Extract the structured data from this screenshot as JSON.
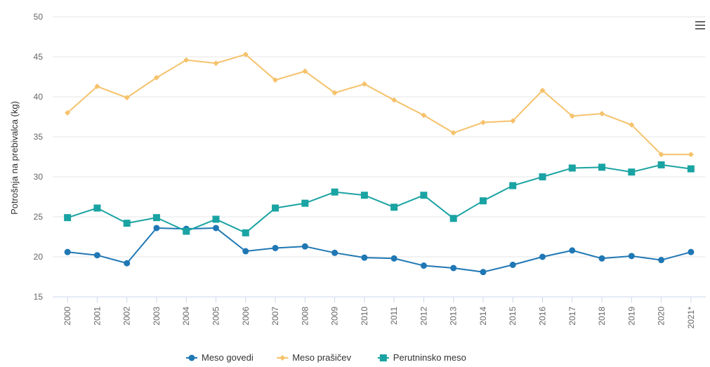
{
  "chart_data": {
    "type": "line",
    "title": "",
    "xlabel": "",
    "ylabel": "Potrošnja na prebivalca (kg)",
    "ylim": [
      15,
      50
    ],
    "yticks": [
      15,
      20,
      25,
      30,
      35,
      40,
      45,
      50
    ],
    "categories": [
      "2000",
      "2001",
      "2002",
      "2003",
      "2004",
      "2005",
      "2006",
      "2007",
      "2008",
      "2009",
      "2010",
      "2011",
      "2012",
      "2013",
      "2014",
      "2015",
      "2016",
      "2017",
      "2018",
      "2019",
      "2020",
      "2021*"
    ],
    "grid": true,
    "legend": "bottom-center",
    "series": [
      {
        "name": "Meso govedi",
        "color": "#1f77b4",
        "marker": "circle",
        "values": [
          20.6,
          20.2,
          19.2,
          23.6,
          23.5,
          23.6,
          20.7,
          21.1,
          21.3,
          20.5,
          19.9,
          19.8,
          18.9,
          18.6,
          18.1,
          19.0,
          20.0,
          20.8,
          19.8,
          20.1,
          19.6,
          20.6
        ]
      },
      {
        "name": "Meso prašičev",
        "color": "#f5c26b",
        "marker": "diamond",
        "values": [
          38.0,
          41.3,
          39.9,
          42.4,
          44.6,
          44.2,
          45.3,
          42.1,
          43.2,
          40.5,
          41.6,
          39.6,
          37.7,
          35.5,
          36.8,
          37.0,
          40.8,
          37.6,
          37.9,
          36.5,
          32.8,
          32.8
        ]
      },
      {
        "name": "Perutninsko meso",
        "color": "#1aa3a3",
        "marker": "square",
        "values": [
          24.9,
          26.1,
          24.2,
          24.9,
          23.2,
          24.7,
          23.0,
          26.1,
          26.7,
          28.1,
          27.7,
          26.2,
          27.7,
          24.8,
          27.0,
          28.9,
          30.0,
          31.1,
          31.2,
          30.6,
          31.5,
          31.0
        ]
      }
    ]
  },
  "ui": {
    "menu_icon": "hamburger-menu-icon"
  }
}
